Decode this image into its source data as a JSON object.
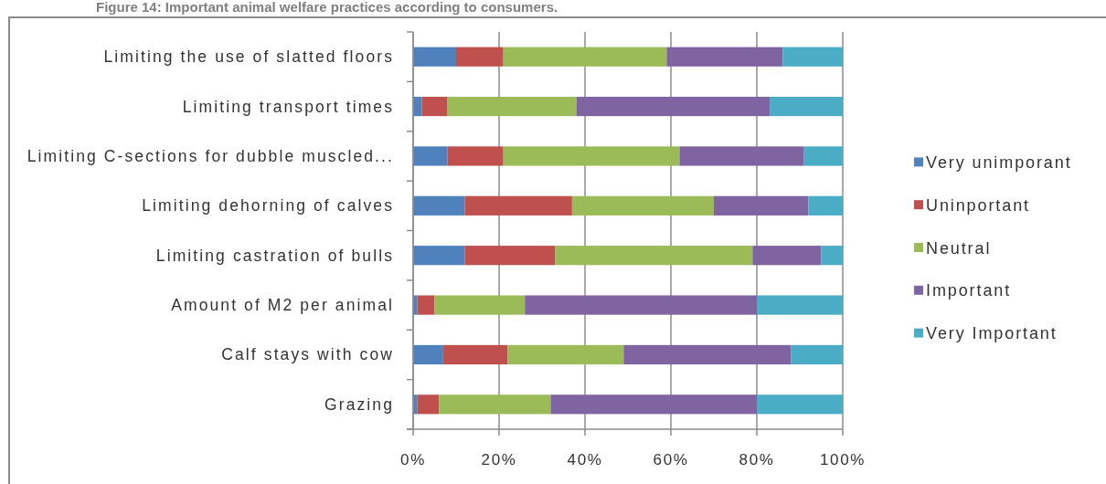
{
  "chart_data": {
    "type": "bar",
    "orientation": "horizontal",
    "stacked": true,
    "title": "Figure 14: Important animal welfare practices according to consumers.",
    "categories": [
      "Limiting the use of slatted floors",
      "Limiting transport times",
      "Limiting C-sections for dubble muscled...",
      "Limiting dehorning of calves",
      "Limiting castration of bulls",
      "Amount of M2 per animal",
      "Calf stays with cow",
      "Grazing"
    ],
    "series": [
      {
        "name": "Very unimporant",
        "color": "#4f81bd",
        "values": [
          10,
          2,
          8,
          12,
          12,
          1,
          7,
          1
        ]
      },
      {
        "name": "Uninportant",
        "color": "#c0504d",
        "values": [
          11,
          6,
          13,
          25,
          21,
          4,
          15,
          5
        ]
      },
      {
        "name": "Neutral",
        "color": "#9bbb59",
        "values": [
          38,
          30,
          41,
          33,
          46,
          21,
          27,
          26
        ]
      },
      {
        "name": "Important",
        "color": "#8064a2",
        "values": [
          27,
          45,
          29,
          22,
          16,
          54,
          39,
          48
        ]
      },
      {
        "name": "Very Important",
        "color": "#4bacc6",
        "values": [
          14,
          17,
          9,
          8,
          5,
          20,
          12,
          20
        ]
      }
    ],
    "xlim": [
      0,
      100
    ],
    "xticks": [
      {
        "value": 0,
        "label": "0%"
      },
      {
        "value": 20,
        "label": "20%"
      },
      {
        "value": 40,
        "label": "40%"
      },
      {
        "value": 60,
        "label": "60%"
      },
      {
        "value": 80,
        "label": "80%"
      },
      {
        "value": 100,
        "label": "100%"
      }
    ],
    "grid": "x",
    "legend": "right"
  }
}
